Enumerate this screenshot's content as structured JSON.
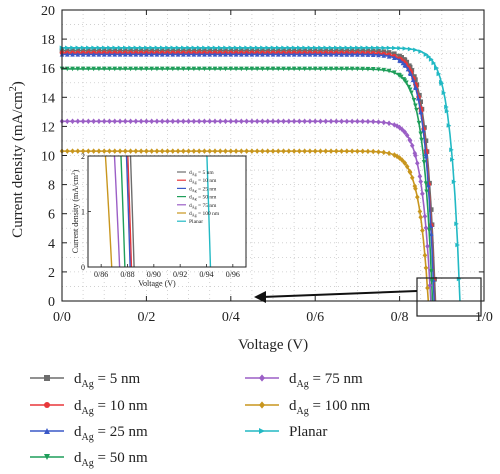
{
  "chart_data": {
    "type": "line",
    "xlabel": "Voltage (V)",
    "ylabel": "Current density (mA/cm",
    "ylabel_sup": "2",
    "ylabel_end": ")",
    "xlim": [
      0,
      1.0
    ],
    "ylim": [
      0,
      20
    ],
    "x_ticks": [
      0,
      0.2,
      0.4,
      0.6,
      0.8,
      1.0
    ],
    "x_tick_labels": [
      "0/0",
      "0/2",
      "0/4",
      "0/6",
      "0/8",
      "1/0"
    ],
    "y_ticks": [
      0,
      2,
      4,
      6,
      8,
      10,
      12,
      14,
      16,
      18,
      20
    ],
    "y_tick_labels": [
      "0",
      "2",
      "4",
      "6",
      "8",
      "10",
      "12",
      "14",
      "16",
      "18",
      "20"
    ],
    "grid": true,
    "series": [
      {
        "name_main": "d",
        "name_sub": "Ag",
        "name_rest": " = 5 nm",
        "color": "#6d6d6d",
        "marker": "square",
        "jsc": 17.2,
        "voc": 0.885
      },
      {
        "name_main": "d",
        "name_sub": "Ag",
        "name_rest": " = 10 nm",
        "color": "#e8373a",
        "marker": "circle",
        "jsc": 17.05,
        "voc": 0.883
      },
      {
        "name_main": "d",
        "name_sub": "Ag",
        "name_rest": " = 25 nm",
        "color": "#3a58c7",
        "marker": "triangle-up",
        "jsc": 16.95,
        "voc": 0.882
      },
      {
        "name_main": "d",
        "name_sub": "Ag",
        "name_rest": " = 50 nm",
        "color": "#1f9e5a",
        "marker": "triangle-down",
        "jsc": 15.95,
        "voc": 0.878
      },
      {
        "name_main": "d",
        "name_sub": "Ag",
        "name_rest": " = 75 nm",
        "color": "#9b5fc6",
        "marker": "diamond",
        "jsc": 12.35,
        "voc": 0.874
      },
      {
        "name_main": "d",
        "name_sub": "Ag",
        "name_rest": " = 100 nm",
        "color": "#c8961e",
        "marker": "diamond",
        "jsc": 10.3,
        "voc": 0.868
      },
      {
        "name_main": "",
        "name_sub": "",
        "name_rest": "Planar",
        "color": "#22b9c4",
        "marker": "triangle-right",
        "jsc": 17.4,
        "voc": 0.943
      }
    ],
    "inset": {
      "xlabel": "Voltage (V)",
      "ylabel": "Current density (mA/cm",
      "ylabel_sup": "2",
      "ylabel_end": ")",
      "xlim": [
        0.85,
        0.97
      ],
      "ylim": [
        0,
        2
      ],
      "x_ticks": [
        0.86,
        0.88,
        0.9,
        0.92,
        0.94,
        0.96
      ],
      "x_tick_labels": [
        "0/86",
        "0/88",
        "0/90",
        "0/92",
        "0/94",
        "0/96"
      ],
      "y_ticks": [
        0,
        1,
        2
      ],
      "y_tick_labels": [
        "0",
        "1",
        "2"
      ],
      "zoom_box_x": [
        0.85,
        0.97
      ],
      "zoom_box_y": [
        0,
        2
      ]
    }
  }
}
